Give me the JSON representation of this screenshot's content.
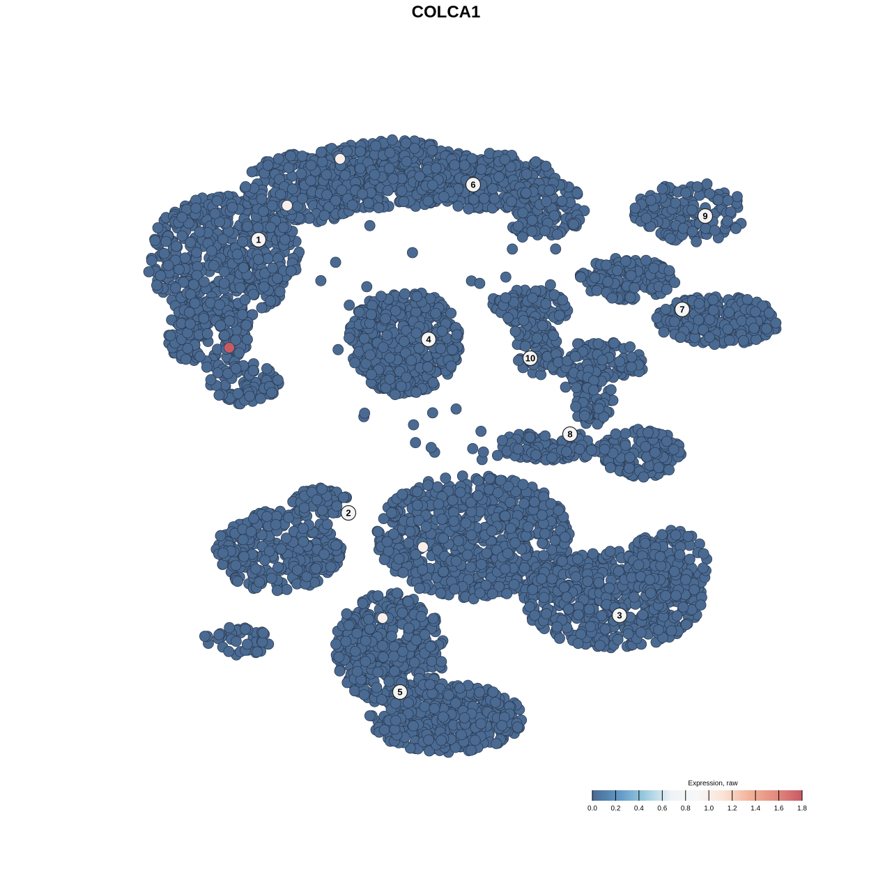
{
  "chart_data": {
    "type": "scatter",
    "title": "COLCA1",
    "xlabel": "",
    "ylabel": "",
    "xlim": [
      -45,
      50
    ],
    "ylim": [
      -47,
      47
    ],
    "grid": false,
    "axes_visible": false,
    "point_color_default": "#4a6a92",
    "point_stroke": "#2b3b52",
    "clusters": [
      {
        "label": "1",
        "x": -26.9,
        "y": 29.6
      },
      {
        "label": "2",
        "x": -14.0,
        "y": -9.6
      },
      {
        "label": "3",
        "x": 24.9,
        "y": -24.3
      },
      {
        "label": "4",
        "x": -2.5,
        "y": 15.3
      },
      {
        "label": "5",
        "x": -6.6,
        "y": -35.3
      },
      {
        "label": "6",
        "x": 3.9,
        "y": 37.5
      },
      {
        "label": "7",
        "x": 33.9,
        "y": 19.6
      },
      {
        "label": "8",
        "x": 17.8,
        "y": 1.7
      },
      {
        "label": "9",
        "x": 37.2,
        "y": 33.0
      },
      {
        "label": "10",
        "x": 12.1,
        "y": 12.6
      }
    ],
    "expressing_cells": [
      {
        "x": -31.1,
        "y": 14.1,
        "expression": 1.8
      },
      {
        "x": -22.8,
        "y": 34.5,
        "expression": 1.0
      },
      {
        "x": -15.2,
        "y": 41.2,
        "expression": 1.0
      },
      {
        "x": -3.3,
        "y": -14.5,
        "expression": 1.0
      },
      {
        "x": -9.1,
        "y": -24.7,
        "expression": 1.0
      }
    ],
    "legend": {
      "title": "Expression, raw",
      "placement": "bottom-right",
      "ticks": [
        "0.0",
        "0.2",
        "0.4",
        "0.6",
        "0.8",
        "1.0",
        "1.2",
        "1.4",
        "1.6",
        "1.8"
      ],
      "range": [
        0,
        1.8
      ],
      "colors": [
        "#4a6a92",
        "#5f97c6",
        "#9bcbe0",
        "#eef3f6",
        "#f7f7f7",
        "#fbe3d6",
        "#f2b29a",
        "#e28b7e",
        "#c85a64"
      ]
    }
  }
}
